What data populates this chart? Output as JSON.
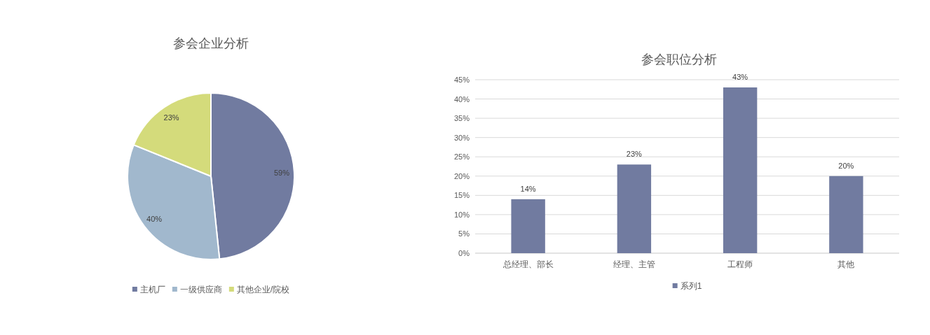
{
  "chart_data": [
    {
      "type": "pie",
      "title": "参会企业分析",
      "categories": [
        "主机厂",
        "一级供应商",
        "其他企业/院校"
      ],
      "values": [
        59,
        40,
        23
      ],
      "colors": [
        "#717ba0",
        "#a1b8cd",
        "#d4db7b"
      ],
      "value_labels": [
        "59%",
        "40%",
        "23%"
      ],
      "legend": "bottom"
    },
    {
      "type": "bar",
      "title": "参会职位分析",
      "categories": [
        "总经理、部长",
        "经理、主管",
        "工程师",
        "其他"
      ],
      "series": [
        {
          "name": "系列1",
          "color": "#717ba0",
          "values": [
            14,
            23,
            43,
            20
          ],
          "value_labels": [
            "14%",
            "23%",
            "43%",
            "20%"
          ]
        }
      ],
      "ylim": [
        0,
        45
      ],
      "yticks": [
        {
          "value": 0,
          "label": "0%"
        },
        {
          "value": 5,
          "label": "5%"
        },
        {
          "value": 10,
          "label": "10%"
        },
        {
          "value": 15,
          "label": "15%"
        },
        {
          "value": 20,
          "label": "20%"
        },
        {
          "value": 25,
          "label": "25%"
        },
        {
          "value": 30,
          "label": "30%"
        },
        {
          "value": 35,
          "label": "35%"
        },
        {
          "value": 40,
          "label": "40%"
        },
        {
          "value": 45,
          "label": "45%"
        }
      ],
      "grid": "y",
      "legend": "bottom"
    }
  ]
}
